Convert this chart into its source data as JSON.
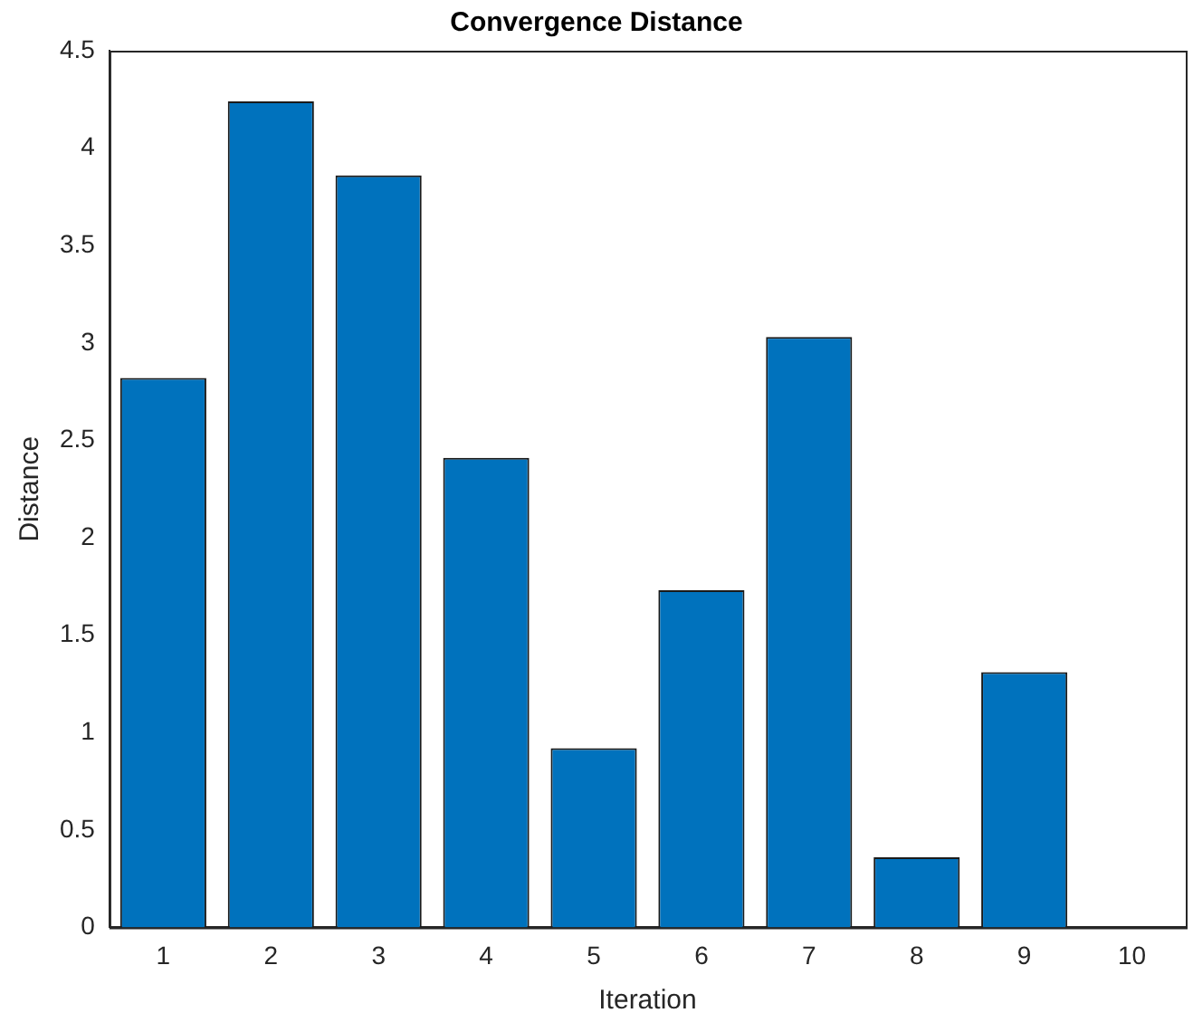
{
  "chart_data": {
    "type": "bar",
    "title": "Convergence Distance",
    "xlabel": "Iteration",
    "ylabel": "Distance",
    "categories": [
      "1",
      "2",
      "3",
      "4",
      "5",
      "6",
      "7",
      "8",
      "9",
      "10"
    ],
    "values": [
      2.82,
      4.24,
      3.86,
      2.41,
      0.92,
      1.73,
      3.03,
      0.36,
      1.31,
      0
    ],
    "color": "#0072bd",
    "ylim": [
      0,
      4.5
    ],
    "yticks": [
      0,
      0.5,
      1,
      1.5,
      2,
      2.5,
      3,
      3.5,
      4,
      4.5
    ],
    "grid": false,
    "legend": false
  }
}
